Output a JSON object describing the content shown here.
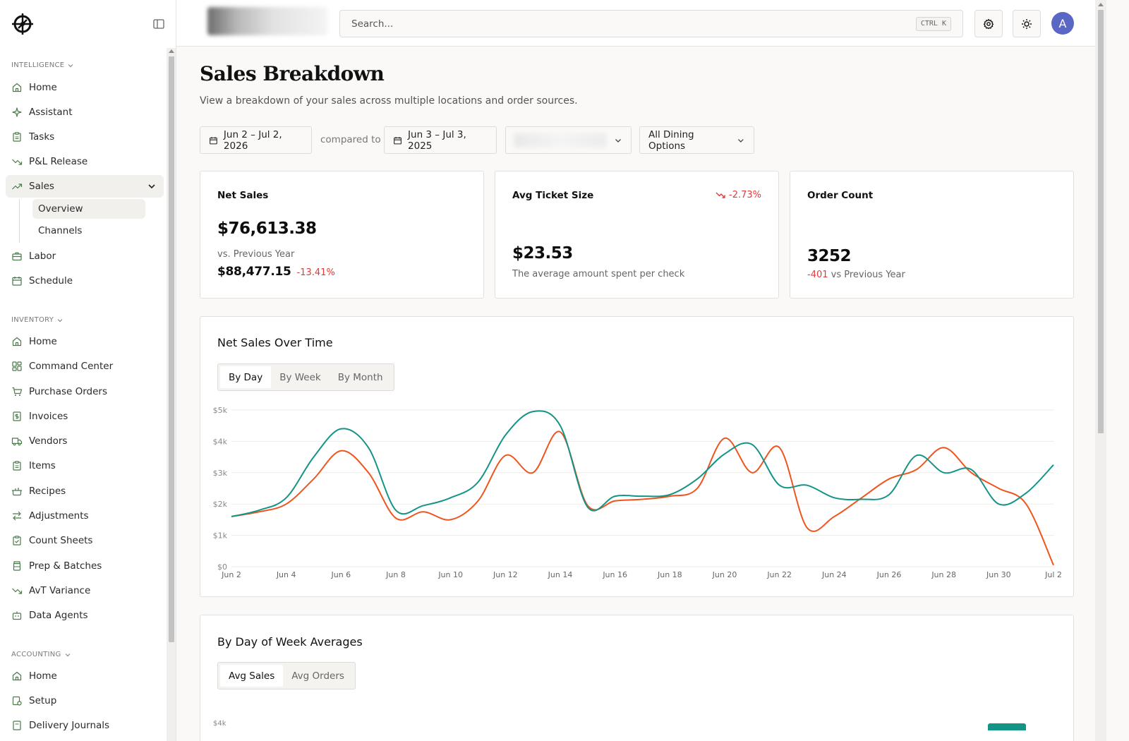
{
  "sidebar": {
    "sections": [
      {
        "label": "INTELLIGENCE"
      },
      {
        "label": "INVENTORY"
      },
      {
        "label": "ACCOUNTING"
      }
    ],
    "intelligence_items": [
      {
        "label": "Home",
        "icon": "home-icon"
      },
      {
        "label": "Assistant",
        "icon": "sparkle-icon"
      },
      {
        "label": "Tasks",
        "icon": "clipboard-icon"
      },
      {
        "label": "P&L Release",
        "icon": "trend-down-icon"
      },
      {
        "label": "Sales",
        "icon": "trend-up-icon"
      }
    ],
    "sales_sub": [
      {
        "label": "Overview"
      },
      {
        "label": "Channels"
      }
    ],
    "intelligence_after": [
      {
        "label": "Labor",
        "icon": "briefcase-icon"
      },
      {
        "label": "Schedule",
        "icon": "calendar-icon"
      }
    ],
    "inventory_items": [
      {
        "label": "Home",
        "icon": "home-icon"
      },
      {
        "label": "Command Center",
        "icon": "grid-icon"
      },
      {
        "label": "Purchase Orders",
        "icon": "cart-icon"
      },
      {
        "label": "Invoices",
        "icon": "dollar-doc-icon"
      },
      {
        "label": "Vendors",
        "icon": "truck-icon"
      },
      {
        "label": "Items",
        "icon": "clipboard-icon"
      },
      {
        "label": "Recipes",
        "icon": "pot-icon"
      },
      {
        "label": "Adjustments",
        "icon": "arrows-icon"
      },
      {
        "label": "Count Sheets",
        "icon": "clipboard-check-icon"
      },
      {
        "label": "Prep & Batches",
        "icon": "jar-icon"
      },
      {
        "label": "AvT Variance",
        "icon": "trend-down-icon"
      },
      {
        "label": "Data Agents",
        "icon": "bot-icon"
      }
    ],
    "accounting_items": [
      {
        "label": "Home",
        "icon": "home-icon"
      },
      {
        "label": "Setup",
        "icon": "setup-icon"
      },
      {
        "label": "Delivery Journals",
        "icon": "journal-icon"
      }
    ]
  },
  "topbar": {
    "search_placeholder": "Search...",
    "search_shortcut": "CTRL K",
    "avatar_initial": "A"
  },
  "page": {
    "title": "Sales Breakdown",
    "subtitle": "View a breakdown of your sales across multiple locations and order sources."
  },
  "filters": {
    "date_range": "Jun 2 – Jul 2, 2026",
    "compared_label": "compared to",
    "compare_range": "Jun 3 – Jul 3, 2025",
    "dining_option": "All Dining Options"
  },
  "cards": {
    "net_sales": {
      "title": "Net Sales",
      "value": "$76,613.38",
      "prev_label": "vs. Previous Year",
      "prev_value": "$88,477.15",
      "delta": "-13.41%"
    },
    "avg_ticket": {
      "title": "Avg Ticket Size",
      "delta": "-2.73%",
      "value": "$23.53",
      "caption": "The average amount spent per check"
    },
    "order_count": {
      "title": "Order Count",
      "value": "3252",
      "delta": "-401",
      "caption": "vs Previous Year"
    }
  },
  "net_sales_panel": {
    "title": "Net Sales Over Time",
    "tabs": [
      "By Day",
      "By Week",
      "By Month"
    ],
    "active_tab": "By Day"
  },
  "dow_panel": {
    "title": "By Day of Week Averages",
    "tabs": [
      "Avg Sales",
      "Avg Orders"
    ],
    "active_tab": "Avg Sales",
    "first_tick": "$4k"
  },
  "colors": {
    "teal": "#139487",
    "orange": "#f0541e",
    "negative": "#e03b3b",
    "avatar": "#5a67c4"
  },
  "chart_data": {
    "type": "line",
    "title": "Net Sales Over Time",
    "ylim": [
      0,
      5000
    ],
    "yticks": [
      "$0",
      "$1k",
      "$2k",
      "$3k",
      "$4k",
      "$5k"
    ],
    "ytick_values": [
      0,
      1000,
      2000,
      3000,
      4000,
      5000
    ],
    "xticks": [
      "Jun 2",
      "Jun 4",
      "Jun 6",
      "Jun 8",
      "Jun 10",
      "Jun 12",
      "Jun 14",
      "Jun 16",
      "Jun 18",
      "Jun 20",
      "Jun 22",
      "Jun 24",
      "Jun 26",
      "Jun 28",
      "Jun 30",
      "Jul 2"
    ],
    "grid": true,
    "x_days": [
      0,
      1,
      2,
      3,
      4,
      5,
      6,
      7,
      8,
      9,
      10,
      11,
      12,
      13,
      14,
      15,
      16,
      17,
      18,
      19,
      20,
      21,
      22,
      23,
      24,
      25,
      26,
      27,
      28,
      29,
      30
    ],
    "series": [
      {
        "color": "#139487",
        "values": [
          1600,
          1800,
          2200,
          3500,
          4400,
          3800,
          1800,
          1950,
          2200,
          2700,
          4200,
          4950,
          4500,
          1900,
          2250,
          2250,
          2300,
          2800,
          3600,
          3900,
          2600,
          2600,
          2200,
          2150,
          2300,
          3550,
          3000,
          3100,
          2000,
          2350,
          3250
        ]
      },
      {
        "color": "#f0541e",
        "values": [
          1600,
          1750,
          2000,
          2800,
          3700,
          3000,
          1550,
          1750,
          1500,
          2100,
          3550,
          3000,
          4300,
          1950,
          2100,
          2150,
          2250,
          2500,
          4100,
          3000,
          3800,
          1250,
          1600,
          2200,
          2800,
          3100,
          3800,
          3000,
          2500,
          2000,
          50
        ]
      }
    ]
  }
}
